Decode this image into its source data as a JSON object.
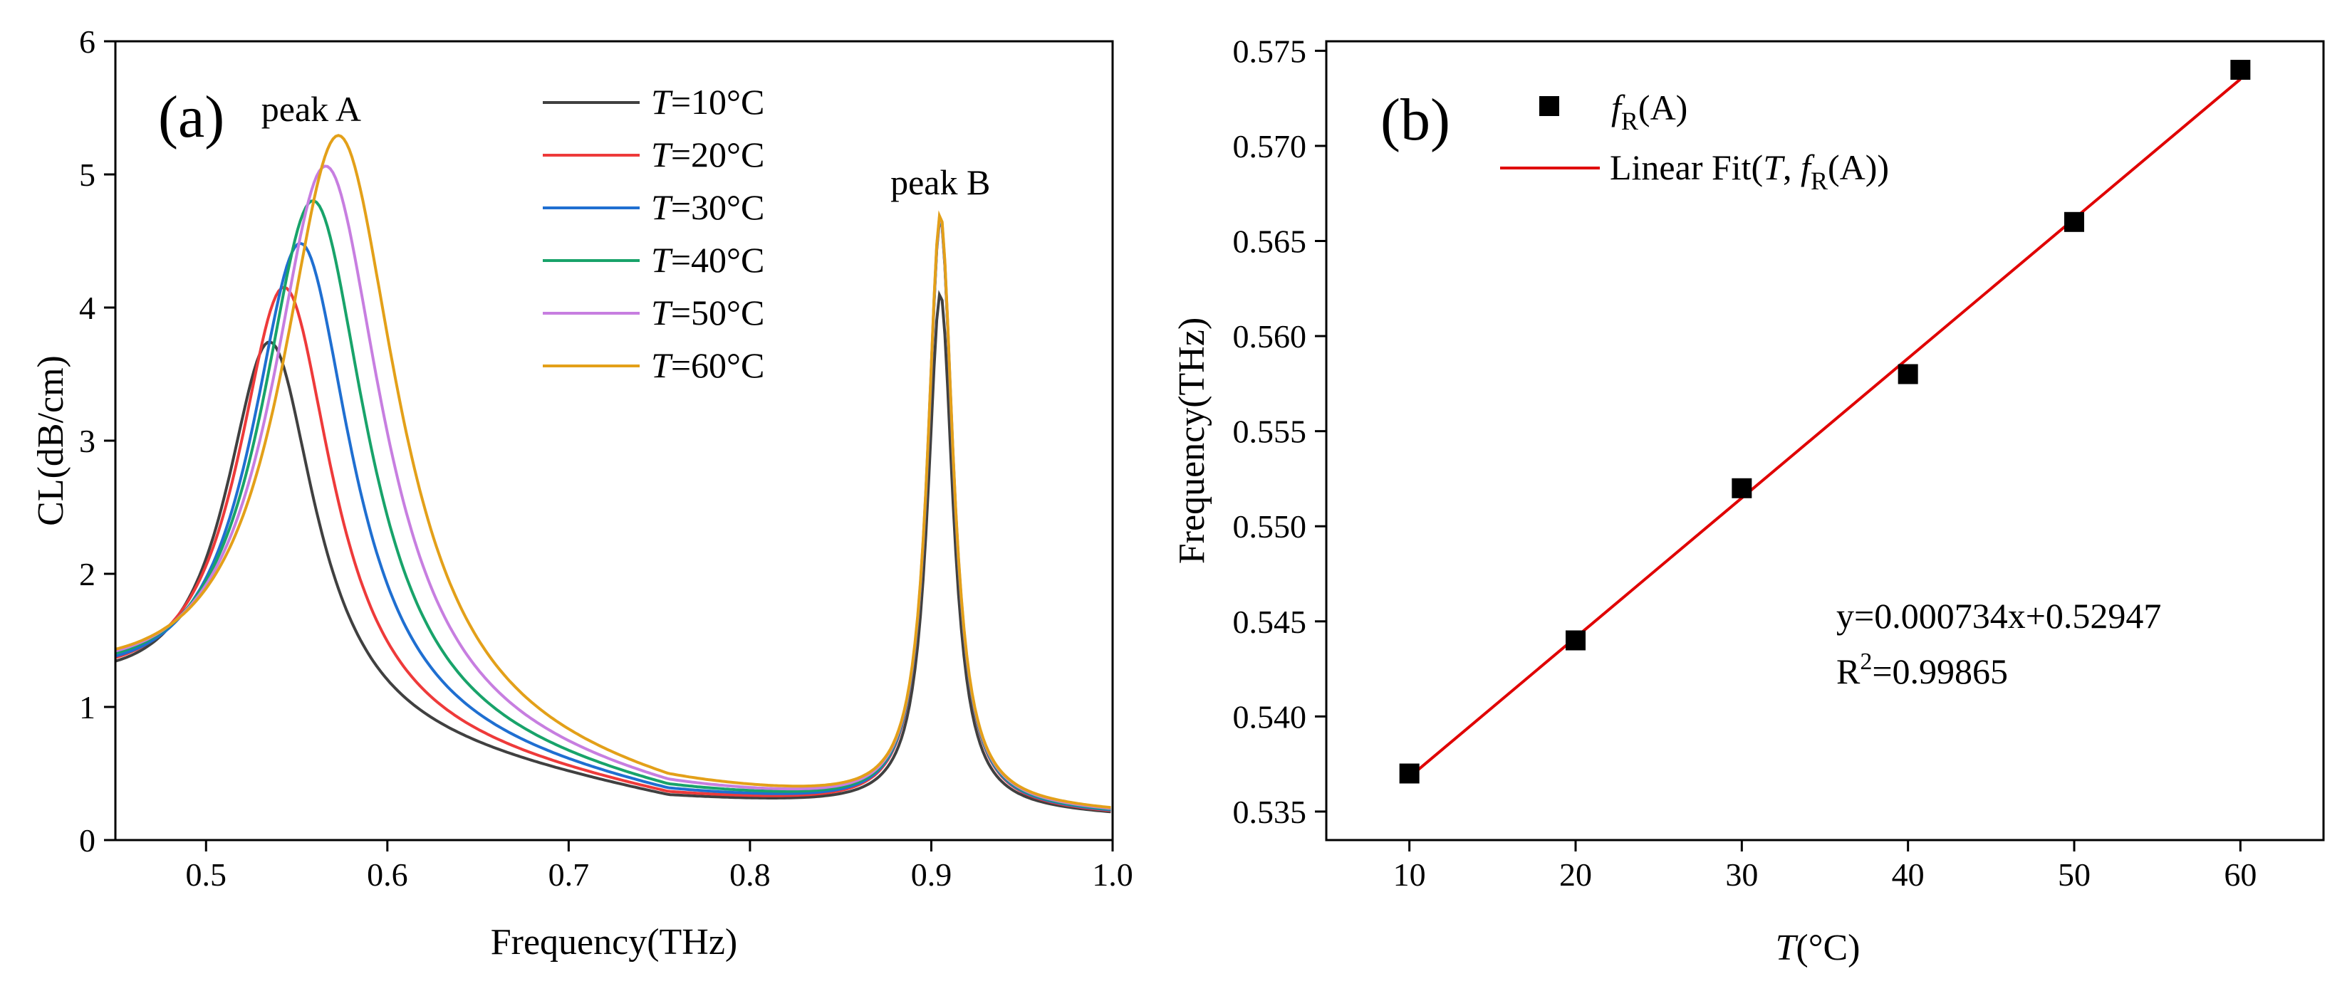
{
  "chart_data": [
    {
      "type": "line",
      "panel_label": "(a)",
      "xlabel": "Frequency(THz)",
      "ylabel": "CL(dB/cm)",
      "xlim": [
        0.45,
        1.0
      ],
      "ylim": [
        0,
        6
      ],
      "xticks": [
        "0.5",
        "0.6",
        "0.7",
        "0.8",
        "0.9",
        "1.0"
      ],
      "yticks": [
        "0",
        "1",
        "2",
        "3",
        "4",
        "5",
        "6"
      ],
      "annotations": [
        {
          "text": "peak A",
          "x": 0.558,
          "y": 5.4
        },
        {
          "text": "peak B",
          "x": 0.905,
          "y": 4.85
        }
      ],
      "legend_position": "top-center",
      "legend_prefix": "T",
      "series": [
        {
          "name": "T=10°C",
          "legend_suffix": "=10°C",
          "color": "#404040",
          "peakA_x": 0.535,
          "peakA_y": 3.74
        },
        {
          "name": "T=20°C",
          "legend_suffix": "=20°C",
          "color": "#ee3a3a",
          "peakA_x": 0.543,
          "peakA_y": 4.15
        },
        {
          "name": "T=30°C",
          "legend_suffix": "=30°C",
          "color": "#1f6fd1",
          "peakA_x": 0.552,
          "peakA_y": 4.48
        },
        {
          "name": "T=40°C",
          "legend_suffix": "=40°C",
          "color": "#18a36a",
          "peakA_x": 0.559,
          "peakA_y": 4.8
        },
        {
          "name": "T=50°C",
          "legend_suffix": "=50°C",
          "color": "#c77ee0",
          "peakA_x": 0.566,
          "peakA_y": 5.06
        },
        {
          "name": "T=60°C",
          "legend_suffix": "=60°C",
          "color": "#e3a019",
          "peakA_x": 0.573,
          "peakA_y": 5.29
        }
      ],
      "peakB": {
        "x": 0.905,
        "y": 4.73
      },
      "baseline": {
        "start": 1.45,
        "valley": 0.37,
        "end": 0.23
      }
    },
    {
      "type": "scatter",
      "panel_label": "(b)",
      "xlabel": "T(°C)",
      "xlabel_var": "T",
      "xlabel_rest": "(°C)",
      "ylabel": "Frequency(THz)",
      "xlim": [
        5,
        65
      ],
      "ylim": [
        0.5335,
        0.5755
      ],
      "xticks": [
        "10",
        "20",
        "30",
        "40",
        "50",
        "60"
      ],
      "yticks": [
        "0.535",
        "0.540",
        "0.545",
        "0.550",
        "0.555",
        "0.560",
        "0.565",
        "0.570",
        "0.575"
      ],
      "x": [
        10,
        20,
        30,
        40,
        50,
        60
      ],
      "y": [
        0.537,
        0.544,
        0.552,
        0.558,
        0.566,
        0.574
      ],
      "scatter_name": "fR(A)",
      "scatter_color": "#000000",
      "fit": {
        "name": "Linear Fit(T, fR(A))",
        "slope": 0.000734,
        "intercept": 0.52947,
        "color": "#e00000",
        "equation": "y=0.000734x+0.52947",
        "r2_prefix": "R",
        "r2_value": "=0.99865"
      },
      "legend_position": "top-left"
    }
  ]
}
